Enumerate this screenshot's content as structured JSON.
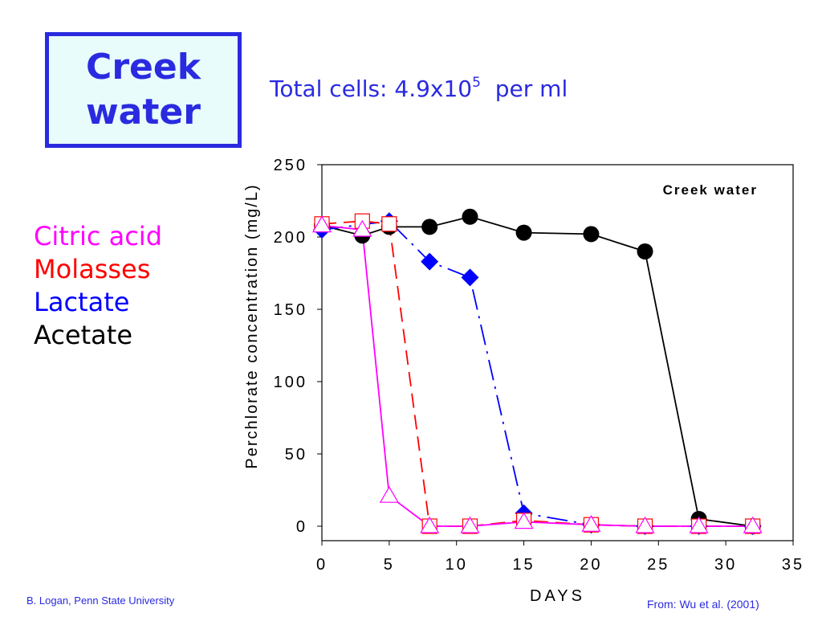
{
  "header": {
    "title_line1": "Creek",
    "title_line2": "water",
    "subtitle_main": "Total cells: 4.9x10",
    "subtitle_exp": "5",
    "subtitle_tail": "  per ml"
  },
  "legend": {
    "items": [
      {
        "label": "Citric acid",
        "color": "#ff00ff"
      },
      {
        "label": "Molasses",
        "color": "#ff0000"
      },
      {
        "label": "Lactate",
        "color": "#0000ff"
      },
      {
        "label": "Acetate",
        "color": "#000000"
      }
    ]
  },
  "footer": {
    "left": "B. Logan, Penn State University",
    "right": "From: Wu et al. (2001)"
  },
  "colors": {
    "title_border": "#2a2ae0",
    "title_bg": "#e8fcfc",
    "accent_text": "#2a2ae0"
  },
  "chart_data": {
    "type": "line",
    "title": "Creek water",
    "xlabel": "DAYS",
    "ylabel": "Perchlorate concentration (mg/L)",
    "xlim": [
      0,
      35
    ],
    "ylim": [
      0,
      250
    ],
    "xticks": [
      0,
      5,
      10,
      15,
      20,
      25,
      30,
      35
    ],
    "yticks": [
      0,
      50,
      100,
      150,
      200,
      250
    ],
    "grid": false,
    "series": [
      {
        "name": "Acetate",
        "color": "#000000",
        "marker": "circle",
        "line": "solid",
        "x": [
          0,
          3,
          5,
          8,
          11,
          15,
          20,
          24,
          28,
          32
        ],
        "y": [
          208,
          201,
          207,
          207,
          214,
          203,
          202,
          190,
          5,
          0
        ]
      },
      {
        "name": "Lactate",
        "color": "#0000ff",
        "marker": "diamond",
        "line": "dashdot",
        "x": [
          0,
          5,
          8,
          11,
          15,
          20,
          24,
          28,
          32
        ],
        "y": [
          205,
          211,
          183,
          172,
          9,
          1,
          0,
          0,
          0
        ]
      },
      {
        "name": "Molasses",
        "color": "#ff0000",
        "marker": "square",
        "line": "dashed",
        "x": [
          0,
          3,
          5,
          8,
          11,
          15,
          20,
          24,
          28,
          32
        ],
        "y": [
          209,
          211,
          209,
          0,
          0,
          4,
          1,
          0,
          0,
          0
        ]
      },
      {
        "name": "Citric acid",
        "color": "#ff00ff",
        "marker": "triangle",
        "line": "solid",
        "x": [
          0,
          3,
          5,
          8,
          11,
          15,
          20,
          24,
          28,
          32
        ],
        "y": [
          208,
          205,
          21,
          0,
          0,
          3,
          1,
          0,
          0,
          0
        ]
      }
    ]
  }
}
